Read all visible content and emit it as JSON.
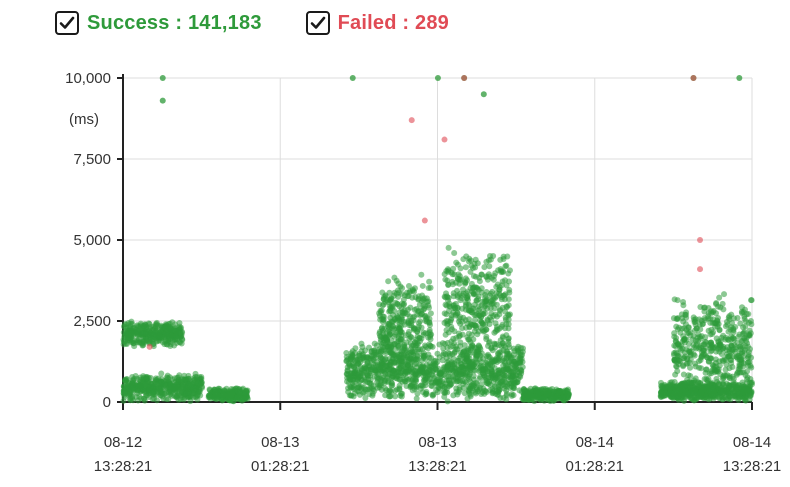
{
  "legend": {
    "success": {
      "label": "Success : 141,183",
      "checked": true,
      "color": "#2e9a3a",
      "icon": "checkbox-checked-icon"
    },
    "failed": {
      "label": "Failed : 289",
      "checked": true,
      "color": "#e04b55",
      "icon": "checkbox-checked-icon"
    }
  },
  "chart_data": {
    "type": "scatter",
    "ylabel": "",
    "yunit": "(ms)",
    "ylim": [
      0,
      10000
    ],
    "y_ticks": [
      0,
      2500,
      5000,
      7500,
      10000
    ],
    "y_tick_labels": [
      "0",
      "2,500",
      "5,000",
      "7,500",
      "10,000"
    ],
    "xlim": [
      "2024-08-12 13:28:21",
      "2024-08-14 13:28:21"
    ],
    "x_ticks": [
      {
        "date": "08-12",
        "time": "13:28:21"
      },
      {
        "date": "08-13",
        "time": "01:28:21"
      },
      {
        "date": "08-13",
        "time": "13:28:21"
      },
      {
        "date": "08-14",
        "time": "01:28:21"
      },
      {
        "date": "08-14",
        "time": "13:28:21"
      }
    ],
    "grid": true,
    "legend_position": "top-left",
    "series": [
      {
        "name": "Success",
        "color": "#2e9a3a",
        "count": 141183,
        "clusters": [
          {
            "from": "08-12 13:30",
            "to": "08-12 19:30",
            "y_median": 250,
            "note": "dense band 0-900 ms"
          },
          {
            "from": "08-12 13:30",
            "to": "08-12 18:00",
            "y_median": 2000,
            "note": "band 1,700-2,500 ms"
          },
          {
            "from": "08-12 20:00",
            "to": "08-12 23:00",
            "y_median": 200
          },
          {
            "from": "08-13 06:30",
            "to": "08-13 20:00",
            "y_median": 600,
            "note": "dense 0-1,900 ms"
          },
          {
            "from": "08-13 09:00",
            "to": "08-13 13:00",
            "y_median": 2300,
            "note": "band up to 4,000 ms"
          },
          {
            "from": "08-13 14:00",
            "to": "08-13 19:00",
            "y_median": 2500,
            "note": "band up to 4,800 ms"
          },
          {
            "from": "08-13 20:00",
            "to": "08-13 23:30",
            "y_median": 200
          },
          {
            "from": "08-14 06:30",
            "to": "08-14 13:28",
            "y_median": 300
          },
          {
            "from": "08-14 07:30",
            "to": "08-14 13:28",
            "y_median": 1600,
            "note": "dense up to 3,400 ms"
          }
        ],
        "outliers": [
          {
            "x": "08-12 16:30",
            "y": 10000
          },
          {
            "x": "08-12 16:30",
            "y": 9300
          },
          {
            "x": "08-13 07:00",
            "y": 10000
          },
          {
            "x": "08-13 13:30",
            "y": 10000
          },
          {
            "x": "08-13 15:30",
            "y": 10000
          },
          {
            "x": "08-13 17:00",
            "y": 9500
          },
          {
            "x": "08-14 09:00",
            "y": 10000
          },
          {
            "x": "08-14 12:30",
            "y": 10000
          }
        ]
      },
      {
        "name": "Failed",
        "color": "#e04b55",
        "count": 289,
        "points": [
          {
            "x": "08-13 11:30",
            "y": 8700
          },
          {
            "x": "08-13 12:30",
            "y": 5600
          },
          {
            "x": "08-13 14:00",
            "y": 8100
          },
          {
            "x": "08-13 15:30",
            "y": 10000
          },
          {
            "x": "08-12 15:30",
            "y": 1700
          },
          {
            "x": "08-14 09:00",
            "y": 10000
          },
          {
            "x": "08-14 09:30",
            "y": 5000
          },
          {
            "x": "08-14 09:30",
            "y": 4100
          }
        ]
      }
    ]
  }
}
